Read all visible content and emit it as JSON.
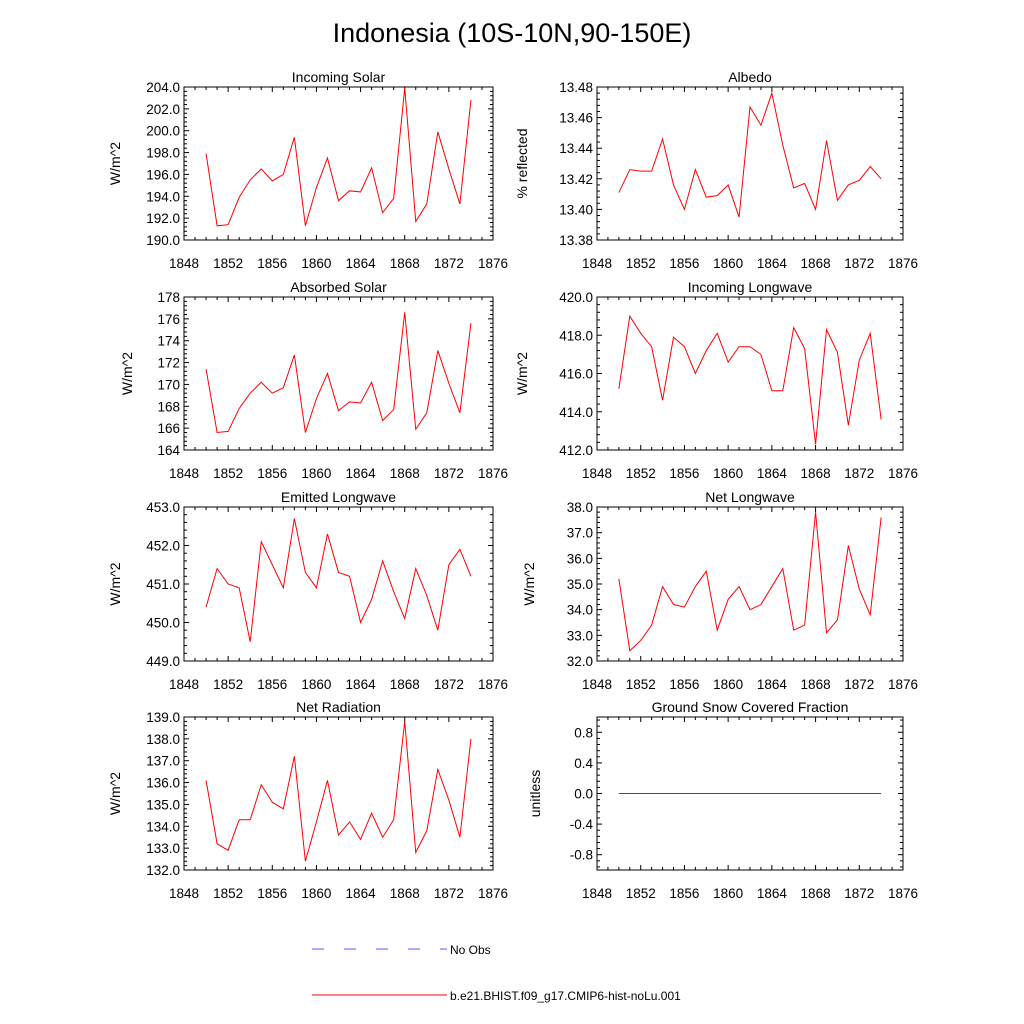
{
  "title": "Indonesia (10S-10N,90-150E)",
  "colors": {
    "model": "#ff0000",
    "obs": "#5a5aff",
    "axis": "#000000"
  },
  "legend": {
    "entries": [
      {
        "label": "No Obs",
        "style": "dashed",
        "color": "#5a5aff"
      },
      {
        "label": "b.e21.BHIST.f09_g17.CMIP6-hist-noLu.001",
        "style": "solid",
        "color": "#ff0000"
      }
    ]
  },
  "chart_data": [
    {
      "type": "line",
      "title": "Incoming Solar",
      "ylabel": "W/m^2",
      "xlim": [
        1848,
        1876
      ],
      "ylim": [
        190,
        204
      ],
      "xticks": [
        1848,
        1852,
        1856,
        1860,
        1864,
        1868,
        1872,
        1876
      ],
      "xticklabels": [
        "1848",
        "1852",
        "1856",
        "1860",
        "1864",
        "1868",
        "1872",
        "1876"
      ],
      "yticks": [
        190,
        192,
        194,
        196,
        198,
        200,
        202,
        204
      ],
      "yticklabels": [
        "190.0",
        "192.0",
        "194.0",
        "196.0",
        "198.0",
        "200.0",
        "202.0",
        "204.0"
      ],
      "x": [
        1850,
        1851,
        1852,
        1853,
        1854,
        1855,
        1856,
        1857,
        1858,
        1859,
        1860,
        1861,
        1862,
        1863,
        1864,
        1865,
        1866,
        1867,
        1868,
        1869,
        1870,
        1871,
        1872,
        1873,
        1874
      ],
      "series": [
        {
          "values": [
            197.9,
            191.3,
            191.4,
            193.9,
            195.5,
            196.5,
            195.4,
            196.0,
            199.4,
            191.3,
            194.8,
            197.5,
            193.6,
            194.5,
            194.4,
            196.6,
            192.5,
            193.8,
            203.9,
            191.7,
            193.3,
            199.9,
            196.5,
            193.3,
            202.8
          ]
        }
      ]
    },
    {
      "type": "line",
      "title": "Albedo",
      "ylabel": "% reflected",
      "xlim": [
        1848,
        1876
      ],
      "ylim": [
        13.38,
        13.48
      ],
      "xticks": [
        1848,
        1852,
        1856,
        1860,
        1864,
        1868,
        1872,
        1876
      ],
      "xticklabels": [
        "1848",
        "1852",
        "1856",
        "1860",
        "1864",
        "1868",
        "1872",
        "1876"
      ],
      "yticks": [
        13.38,
        13.4,
        13.42,
        13.44,
        13.46,
        13.48
      ],
      "yticklabels": [
        "13.38",
        "13.40",
        "13.42",
        "13.44",
        "13.46",
        "13.48"
      ],
      "x": [
        1850,
        1851,
        1852,
        1853,
        1854,
        1855,
        1856,
        1857,
        1858,
        1859,
        1860,
        1861,
        1862,
        1863,
        1864,
        1865,
        1866,
        1867,
        1868,
        1869,
        1870,
        1871,
        1872,
        1873,
        1874
      ],
      "series": [
        {
          "values": [
            13.411,
            13.426,
            13.425,
            13.425,
            13.446,
            13.416,
            13.4,
            13.426,
            13.408,
            13.409,
            13.416,
            13.395,
            13.467,
            13.455,
            13.476,
            13.442,
            13.414,
            13.417,
            13.4,
            13.445,
            13.406,
            13.416,
            13.419,
            13.428,
            13.42
          ]
        }
      ]
    },
    {
      "type": "line",
      "title": "Absorbed Solar",
      "ylabel": "W/m^2",
      "xlim": [
        1848,
        1876
      ],
      "ylim": [
        164,
        178
      ],
      "xticks": [
        1848,
        1852,
        1856,
        1860,
        1864,
        1868,
        1872,
        1876
      ],
      "xticklabels": [
        "1848",
        "1852",
        "1856",
        "1860",
        "1864",
        "1868",
        "1872",
        "1876"
      ],
      "yticks": [
        164,
        166,
        168,
        170,
        172,
        174,
        176,
        178
      ],
      "yticklabels": [
        "164",
        "166",
        "168",
        "170",
        "172",
        "174",
        "176",
        "178"
      ],
      "x": [
        1850,
        1851,
        1852,
        1853,
        1854,
        1855,
        1856,
        1857,
        1858,
        1859,
        1860,
        1861,
        1862,
        1863,
        1864,
        1865,
        1866,
        1867,
        1868,
        1869,
        1870,
        1871,
        1872,
        1873,
        1874
      ],
      "series": [
        {
          "values": [
            171.4,
            165.6,
            165.7,
            167.8,
            169.2,
            170.2,
            169.2,
            169.7,
            172.7,
            165.6,
            168.7,
            171.0,
            167.6,
            168.4,
            168.3,
            170.2,
            166.7,
            167.7,
            176.6,
            165.9,
            167.4,
            173.1,
            170.1,
            167.4,
            175.6
          ]
        }
      ]
    },
    {
      "type": "line",
      "title": "Incoming Longwave",
      "ylabel": "W/m^2",
      "xlim": [
        1848,
        1876
      ],
      "ylim": [
        412,
        420
      ],
      "xticks": [
        1848,
        1852,
        1856,
        1860,
        1864,
        1868,
        1872,
        1876
      ],
      "xticklabels": [
        "1848",
        "1852",
        "1856",
        "1860",
        "1864",
        "1868",
        "1872",
        "1876"
      ],
      "yticks": [
        412,
        414,
        416,
        418,
        420
      ],
      "yticklabels": [
        "412.0",
        "414.0",
        "416.0",
        "418.0",
        "420.0"
      ],
      "x": [
        1850,
        1851,
        1852,
        1853,
        1854,
        1855,
        1856,
        1857,
        1858,
        1859,
        1860,
        1861,
        1862,
        1863,
        1864,
        1865,
        1866,
        1867,
        1868,
        1869,
        1870,
        1871,
        1872,
        1873,
        1874
      ],
      "series": [
        {
          "values": [
            415.2,
            419.0,
            418.1,
            417.4,
            414.6,
            417.9,
            417.4,
            416.0,
            417.2,
            418.1,
            416.6,
            417.4,
            417.4,
            417.0,
            415.1,
            415.1,
            418.4,
            417.3,
            412.3,
            418.3,
            417.1,
            413.3,
            416.7,
            418.1,
            413.6
          ]
        }
      ]
    },
    {
      "type": "line",
      "title": "Emitted Longwave",
      "ylabel": "W/m^2",
      "xlim": [
        1848,
        1876
      ],
      "ylim": [
        449,
        453
      ],
      "xticks": [
        1848,
        1852,
        1856,
        1860,
        1864,
        1868,
        1872,
        1876
      ],
      "xticklabels": [
        "1848",
        "1852",
        "1856",
        "1860",
        "1864",
        "1868",
        "1872",
        "1876"
      ],
      "yticks": [
        449,
        450,
        451,
        452,
        453
      ],
      "yticklabels": [
        "449.0",
        "450.0",
        "451.0",
        "452.0",
        "453.0"
      ],
      "x": [
        1850,
        1851,
        1852,
        1853,
        1854,
        1855,
        1856,
        1857,
        1858,
        1859,
        1860,
        1861,
        1862,
        1863,
        1864,
        1865,
        1866,
        1867,
        1868,
        1869,
        1870,
        1871,
        1872,
        1873,
        1874
      ],
      "series": [
        {
          "values": [
            450.4,
            451.4,
            451.0,
            450.9,
            449.5,
            452.1,
            451.5,
            450.9,
            452.7,
            451.3,
            450.9,
            452.3,
            451.3,
            451.2,
            450.0,
            450.6,
            451.6,
            450.8,
            450.1,
            451.4,
            450.7,
            449.8,
            451.5,
            451.9,
            451.2
          ]
        }
      ]
    },
    {
      "type": "line",
      "title": "Net Longwave",
      "ylabel": "W/m^2",
      "xlim": [
        1848,
        1876
      ],
      "ylim": [
        32,
        38
      ],
      "xticks": [
        1848,
        1852,
        1856,
        1860,
        1864,
        1868,
        1872,
        1876
      ],
      "xticklabels": [
        "1848",
        "1852",
        "1856",
        "1860",
        "1864",
        "1868",
        "1872",
        "1876"
      ],
      "yticks": [
        32,
        33,
        34,
        35,
        36,
        37,
        38
      ],
      "yticklabels": [
        "32.0",
        "33.0",
        "34.0",
        "35.0",
        "36.0",
        "37.0",
        "38.0"
      ],
      "x": [
        1850,
        1851,
        1852,
        1853,
        1854,
        1855,
        1856,
        1857,
        1858,
        1859,
        1860,
        1861,
        1862,
        1863,
        1864,
        1865,
        1866,
        1867,
        1868,
        1869,
        1870,
        1871,
        1872,
        1873,
        1874
      ],
      "series": [
        {
          "values": [
            35.2,
            32.4,
            32.8,
            33.4,
            34.9,
            34.2,
            34.1,
            34.9,
            35.5,
            33.2,
            34.4,
            34.9,
            34.0,
            34.2,
            34.9,
            35.6,
            33.2,
            33.4,
            37.8,
            33.1,
            33.6,
            36.5,
            34.8,
            33.8,
            37.6
          ]
        }
      ]
    },
    {
      "type": "line",
      "title": "Net Radiation",
      "ylabel": "W/m^2",
      "xlim": [
        1848,
        1876
      ],
      "ylim": [
        132,
        139
      ],
      "xticks": [
        1848,
        1852,
        1856,
        1860,
        1864,
        1868,
        1872,
        1876
      ],
      "xticklabels": [
        "1848",
        "1852",
        "1856",
        "1860",
        "1864",
        "1868",
        "1872",
        "1876"
      ],
      "yticks": [
        132,
        133,
        134,
        135,
        136,
        137,
        138,
        139
      ],
      "yticklabels": [
        "132.0",
        "133.0",
        "134.0",
        "135.0",
        "136.0",
        "137.0",
        "138.0",
        "139.0"
      ],
      "x": [
        1850,
        1851,
        1852,
        1853,
        1854,
        1855,
        1856,
        1857,
        1858,
        1859,
        1860,
        1861,
        1862,
        1863,
        1864,
        1865,
        1866,
        1867,
        1868,
        1869,
        1870,
        1871,
        1872,
        1873,
        1874
      ],
      "series": [
        {
          "values": [
            136.1,
            133.2,
            132.9,
            134.3,
            134.3,
            135.9,
            135.1,
            134.8,
            137.2,
            132.4,
            134.2,
            136.1,
            133.6,
            134.2,
            133.4,
            134.6,
            133.5,
            134.3,
            138.8,
            132.8,
            133.8,
            136.6,
            135.2,
            133.5,
            138.0
          ]
        }
      ]
    },
    {
      "type": "line",
      "title": "Ground Snow Covered Fraction",
      "ylabel": "unitless",
      "xlim": [
        1848,
        1876
      ],
      "ylim": [
        -1.0,
        1.0
      ],
      "xticks": [
        1848,
        1852,
        1856,
        1860,
        1864,
        1868,
        1872,
        1876
      ],
      "xticklabels": [
        "1848",
        "1852",
        "1856",
        "1860",
        "1864",
        "1868",
        "1872",
        "1876"
      ],
      "yticks": [
        -0.8,
        -0.4,
        0.0,
        0.4,
        0.8
      ],
      "yticklabels": [
        "-0.8",
        "-0.4",
        "0.0",
        "0.4",
        "0.8"
      ],
      "x": [
        1850,
        1851,
        1852,
        1853,
        1854,
        1855,
        1856,
        1857,
        1858,
        1859,
        1860,
        1861,
        1862,
        1863,
        1864,
        1865,
        1866,
        1867,
        1868,
        1869,
        1870,
        1871,
        1872,
        1873,
        1874
      ],
      "series": [
        {
          "values": [
            0,
            0,
            0,
            0,
            0,
            0,
            0,
            0,
            0,
            0,
            0,
            0,
            0,
            0,
            0,
            0,
            0,
            0,
            0,
            0,
            0,
            0,
            0,
            0,
            0
          ]
        }
      ]
    }
  ]
}
